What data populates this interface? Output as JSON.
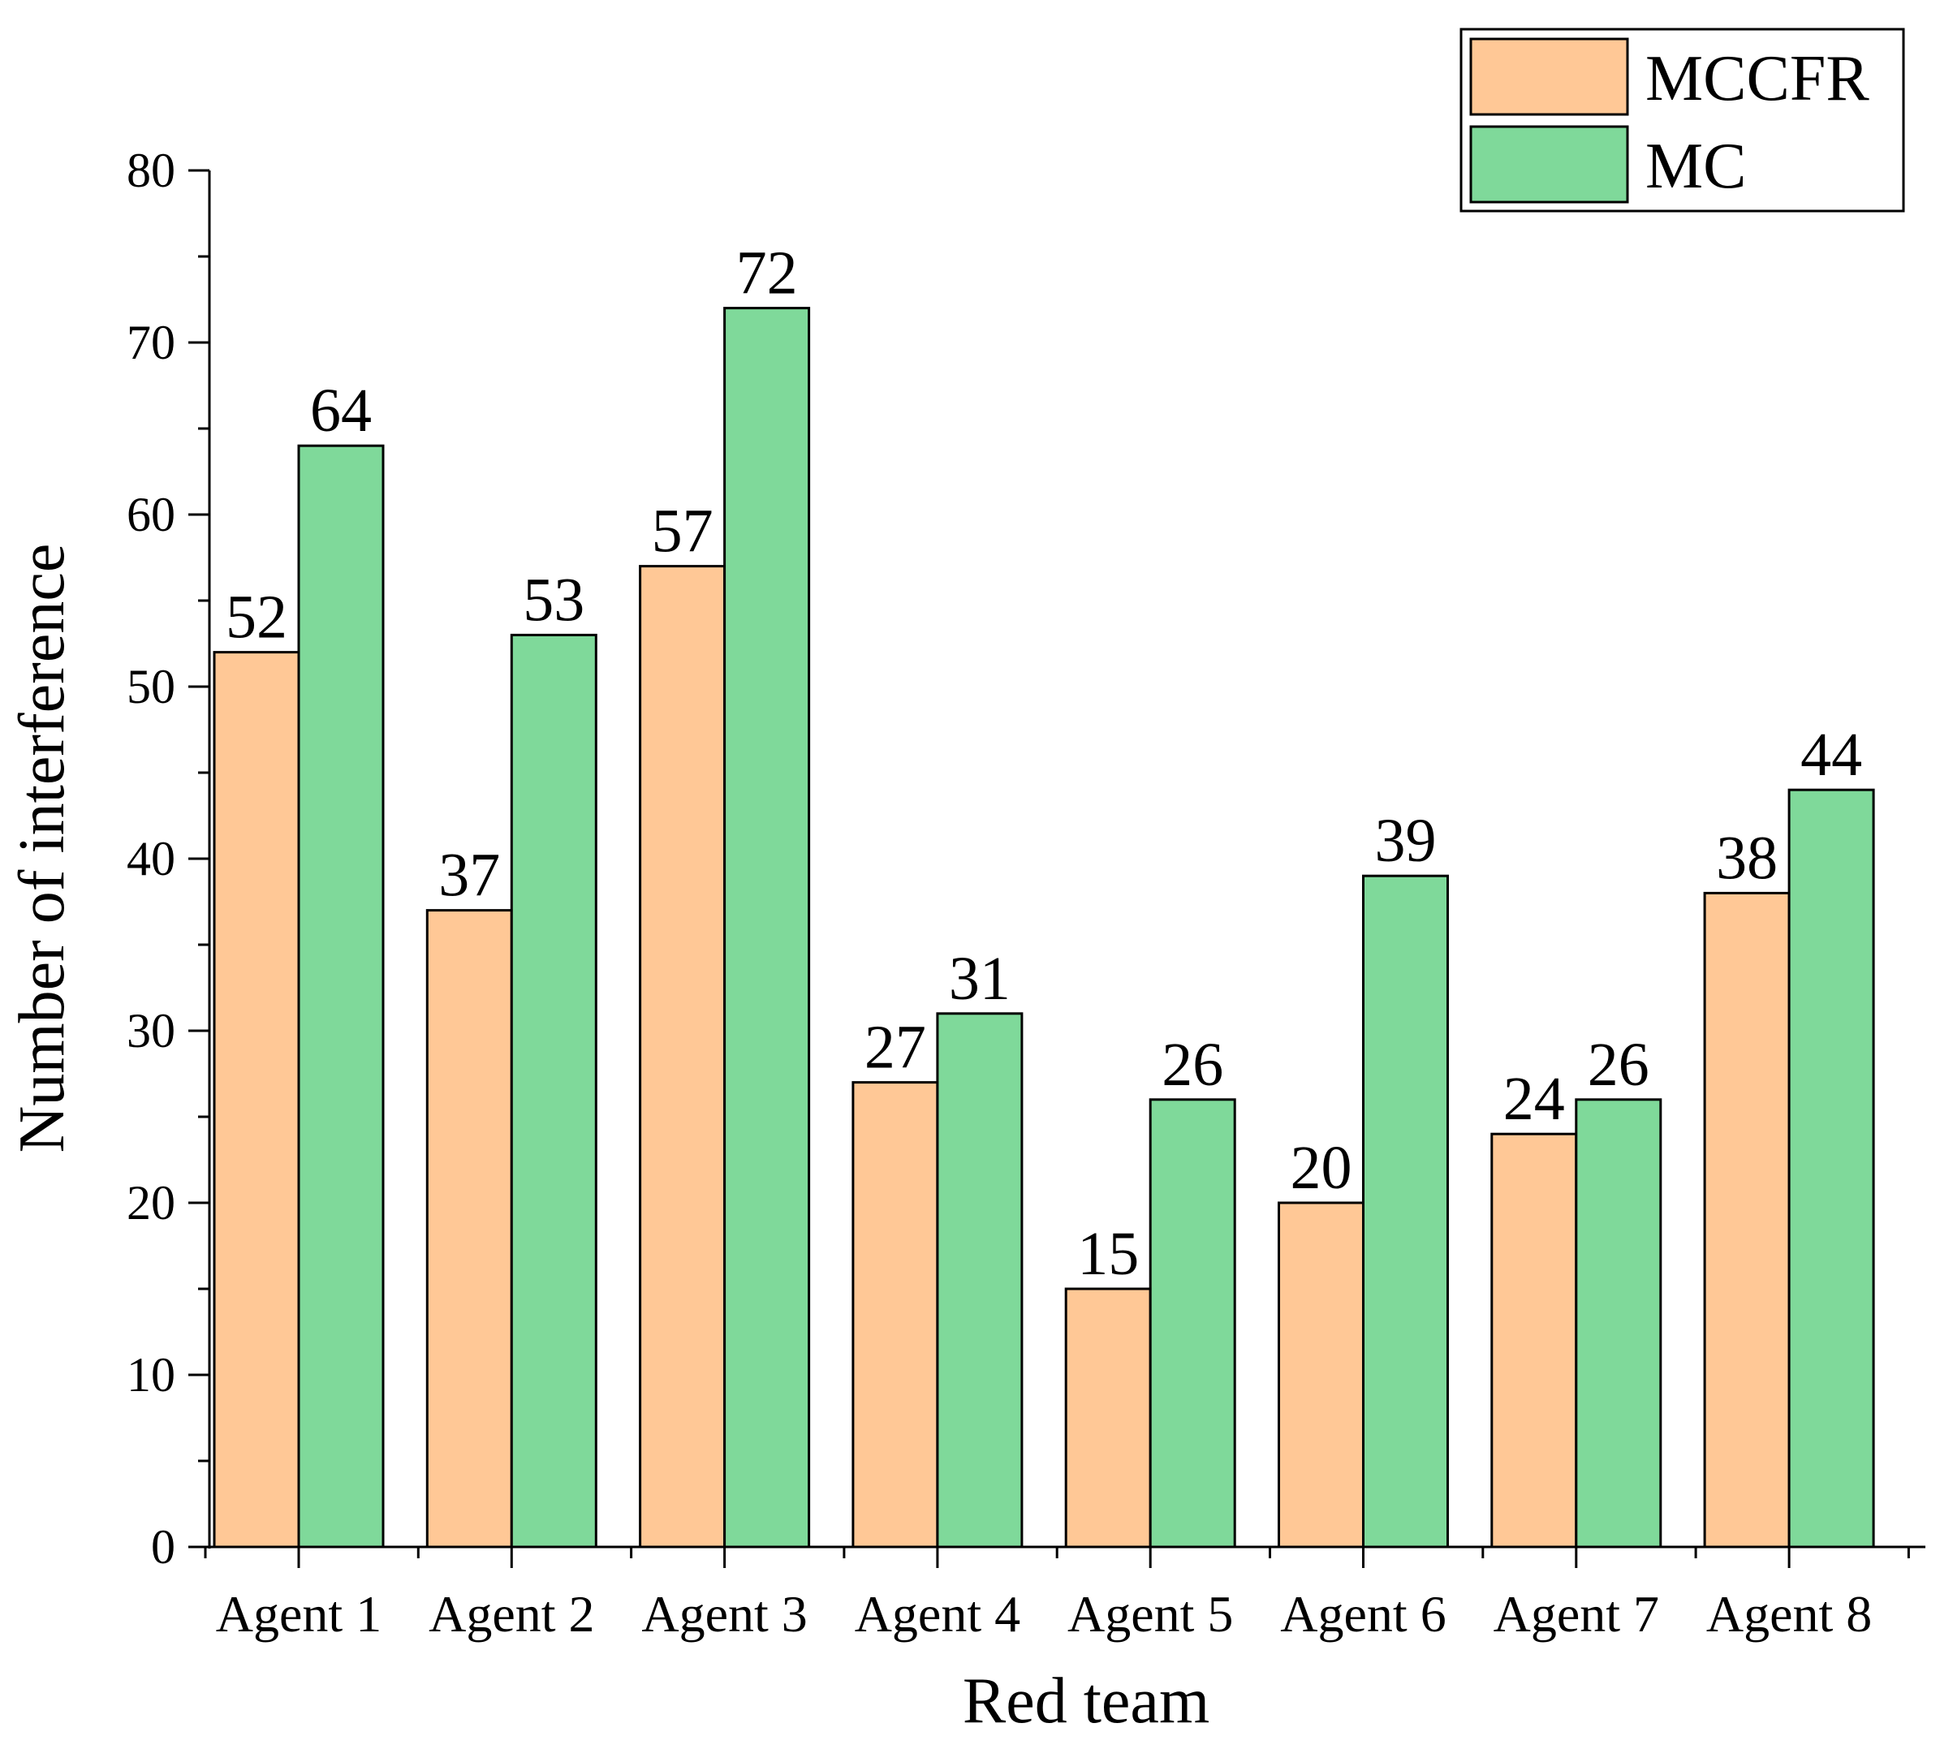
{
  "chart_data": {
    "type": "bar",
    "title": "",
    "xlabel": "Red team",
    "ylabel": "Number of interference",
    "ylim": [
      0,
      80
    ],
    "yticks": [
      0,
      10,
      20,
      30,
      40,
      50,
      60,
      70,
      80
    ],
    "grid": false,
    "legend_position": "top-right",
    "categories": [
      "Agent 1",
      "Agent 2",
      "Agent 3",
      "Agent 4",
      "Agent 5",
      "Agent 6",
      "Agent 7",
      "Agent 8"
    ],
    "series": [
      {
        "name": "MCCFR",
        "color": "#FFC896",
        "values": [
          52,
          37,
          57,
          27,
          15,
          20,
          24,
          38
        ]
      },
      {
        "name": "MC",
        "color": "#7FD99A",
        "values": [
          64,
          53,
          72,
          31,
          26,
          39,
          26,
          44
        ]
      }
    ]
  }
}
